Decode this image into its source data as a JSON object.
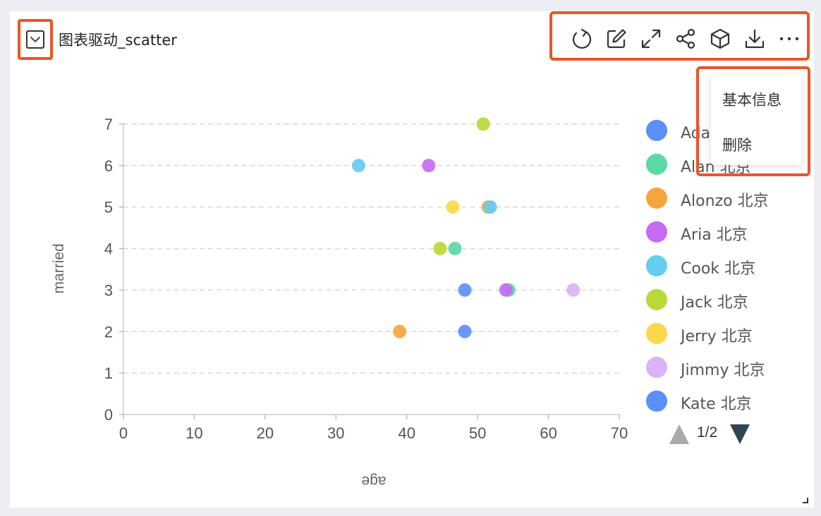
{
  "header": {
    "title": "图表驱动_scatter"
  },
  "toolbar": {
    "icons": [
      "refresh-icon",
      "edit-icon",
      "fullscreen-icon",
      "share-icon",
      "cube-icon",
      "download-icon",
      "more-icon"
    ]
  },
  "context_menu": {
    "items": [
      "基本信息",
      "删除"
    ]
  },
  "legend": {
    "items": [
      {
        "label": "Adam 北京",
        "color": "#5b8ff9"
      },
      {
        "label": "Alan 北京",
        "color": "#5ad8a6"
      },
      {
        "label": "Alonzo 北京",
        "color": "#f6a53e"
      },
      {
        "label": "Aria 北京",
        "color": "#c56cf0"
      },
      {
        "label": "Cook 北京",
        "color": "#66ccf0"
      },
      {
        "label": "Jack 北京",
        "color": "#b8d936"
      },
      {
        "label": "Jerry 北京",
        "color": "#fbd84a"
      },
      {
        "label": "Jimmy 北京",
        "color": "#dbb3f5"
      },
      {
        "label": "Kate 北京",
        "color": "#5b8ff9"
      }
    ],
    "page": "1/2"
  },
  "chart_data": {
    "type": "scatter",
    "xlabel": "age",
    "ylabel": "married",
    "xlim": [
      0,
      70
    ],
    "ylim": [
      0,
      7
    ],
    "xticks": [
      0,
      10,
      20,
      30,
      40,
      50,
      60,
      70
    ],
    "yticks": [
      0,
      1,
      2,
      3,
      4,
      5,
      6,
      7
    ],
    "grid": "horizontal-dashed",
    "legend_position": "right",
    "series": [
      {
        "name": "Adam 北京",
        "color": "#5b8ff9",
        "points": [
          [
            48.2,
            3
          ]
        ]
      },
      {
        "name": "Alan 北京",
        "color": "#5ad8a6",
        "points": [
          [
            46.8,
            4
          ],
          [
            54.4,
            3
          ]
        ]
      },
      {
        "name": "Alonzo 北京",
        "color": "#f6a53e",
        "points": [
          [
            39,
            2
          ],
          [
            51.5,
            5
          ]
        ]
      },
      {
        "name": "Aria 北京",
        "color": "#c56cf0",
        "points": [
          [
            43.1,
            6
          ],
          [
            54,
            3
          ]
        ]
      },
      {
        "name": "Cook 北京",
        "color": "#66ccf0",
        "points": [
          [
            33.2,
            6
          ],
          [
            51.8,
            5
          ]
        ]
      },
      {
        "name": "Jack 北京",
        "color": "#b8d936",
        "points": [
          [
            50.8,
            7
          ],
          [
            44.7,
            4
          ]
        ]
      },
      {
        "name": "Jerry 北京",
        "color": "#fbd84a",
        "points": [
          [
            46.5,
            5
          ]
        ]
      },
      {
        "name": "Jimmy 北京",
        "color": "#dbb3f5",
        "points": [
          [
            63.5,
            3
          ]
        ]
      },
      {
        "name": "Kate 北京",
        "color": "#5b8ff9",
        "points": [
          [
            48.2,
            2
          ]
        ]
      }
    ]
  }
}
